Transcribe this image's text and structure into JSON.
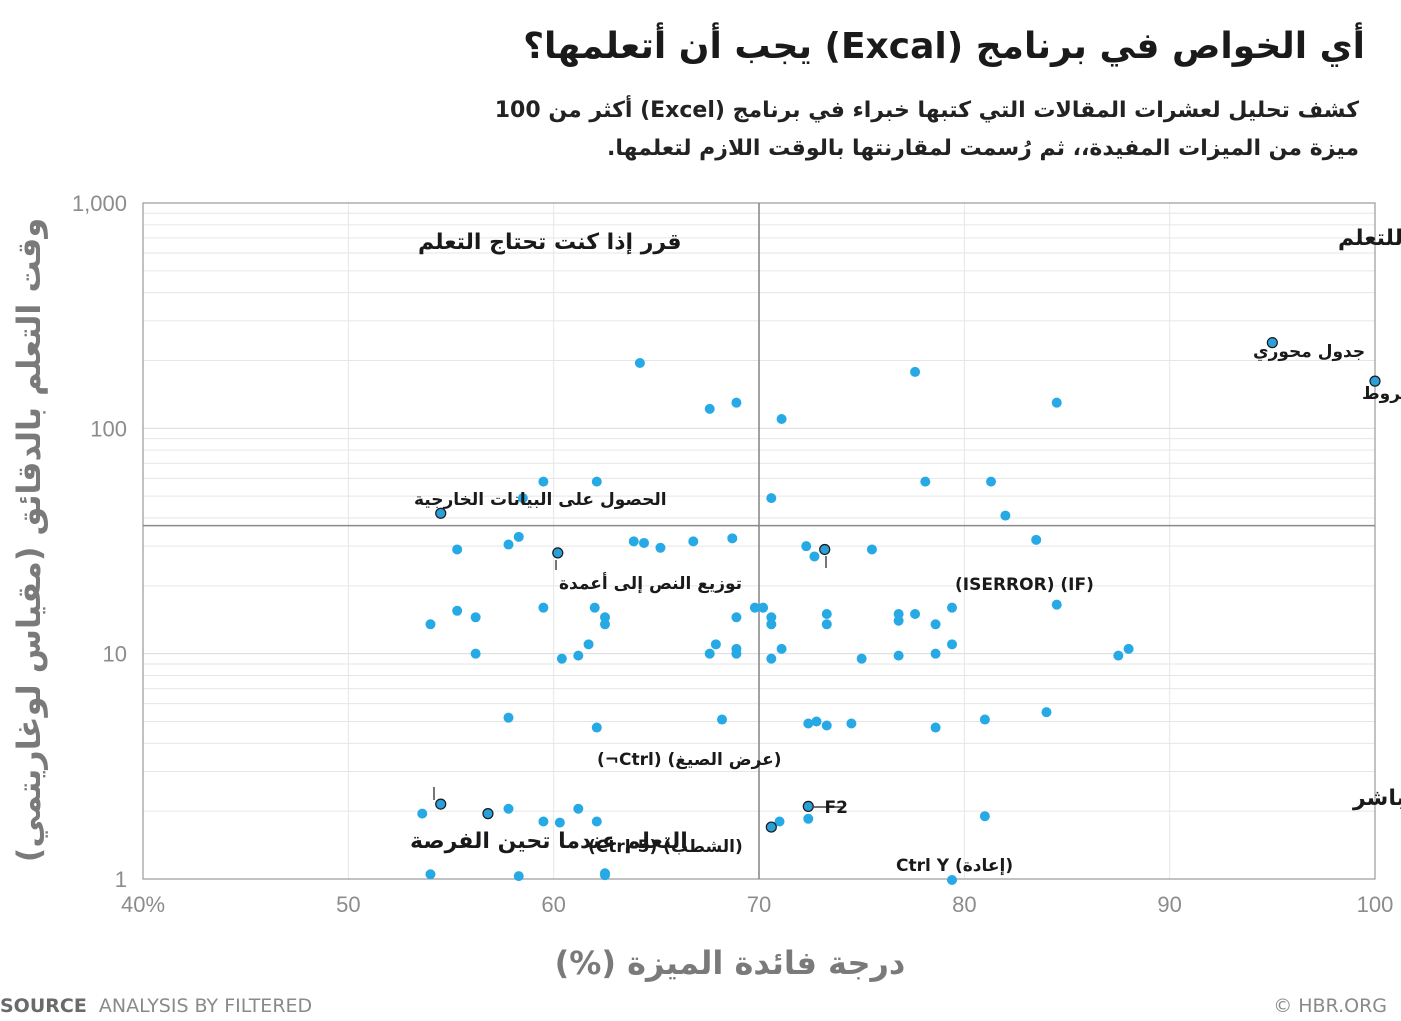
{
  "title": "أي الخواص في برنامج (Excal) يجب أن أتعلمها؟",
  "subtitle": "كشف تحليل لعشرات المقالات التي كتبها خبراء في برنامج (Excel) أكثر من 100 ميزة من الميزات المفيدة،، ثم رُسمت لمقارنتها بالوقت اللازم لتعلمها.",
  "footer": {
    "source_label": "SOURCE",
    "source_text": "ANALYSIS BY FILTERED",
    "credit": "© HBR.ORG"
  },
  "colors": {
    "point": "#27a9e6",
    "highlight": "#2b9fd8",
    "divider": "#8a8a8a",
    "grid": "#e6e6e6"
  },
  "chart_data": {
    "type": "scatter",
    "xlabel": "درجة فائدة الميزة (%)",
    "ylabel": "وقت التعلم بالدقائق (مقياس لوغاريتمي)",
    "xlim": [
      40,
      100
    ],
    "ylim": [
      1,
      1000
    ],
    "y_scale": "log",
    "x_ticks": [
      "40%",
      "50",
      "60",
      "70",
      "80",
      "90",
      "100"
    ],
    "y_ticks": [
      "1",
      "10",
      "100",
      "1,000"
    ],
    "grid": true,
    "dividers": {
      "x": 70,
      "y": 37
    },
    "quadrant_labels": {
      "top_left": "قرر إذا كنت تحتاج التعلم",
      "top_right": "حدد مدة زمنية للتعلم",
      "bottom_left": "التعلم عندما تحين الفرصة",
      "bottom_right": "التعلم بشكل مباشر"
    },
    "labeled_points": [
      {
        "label": "جدول محوري",
        "x": 95,
        "y": 240
      },
      {
        "label": "تنسيق مشروط",
        "x": 100,
        "y": 162
      },
      {
        "label": "الحصول على البيانات الخارجية",
        "x": 54.5,
        "y": 42
      },
      {
        "label": "توزيع النص إلى أعمدة",
        "x": 60.2,
        "y": 28
      },
      {
        "label": "(IF) (ISERROR)",
        "x": 73.2,
        "y": 29
      },
      {
        "label": "(عرض الصيغ)  (Ctrl¬)",
        "x": 54.5,
        "y": 2.15
      },
      {
        "label": "(الشطب)  (Ctrl-5)",
        "x": 56.8,
        "y": 1.95
      },
      {
        "label": "F2",
        "x": 72.4,
        "y": 2.1
      },
      {
        "label": "(إعادة)  Ctrl Y",
        "x": 70.6,
        "y": 1.7
      }
    ],
    "points": [
      [
        64.2,
        195
      ],
      [
        77.6,
        178
      ],
      [
        68.9,
        130
      ],
      [
        67.6,
        122
      ],
      [
        71.1,
        110
      ],
      [
        84.5,
        130
      ],
      [
        59.5,
        58
      ],
      [
        62.1,
        58
      ],
      [
        58.5,
        49
      ],
      [
        70.6,
        49
      ],
      [
        78.1,
        58
      ],
      [
        81.3,
        58
      ],
      [
        82,
        41
      ],
      [
        58.3,
        33
      ],
      [
        57.8,
        30.5
      ],
      [
        55.3,
        29
      ],
      [
        63.9,
        31.5
      ],
      [
        64.4,
        31
      ],
      [
        65.2,
        29.5
      ],
      [
        66.8,
        31.5
      ],
      [
        68.7,
        32.5
      ],
      [
        72.3,
        30
      ],
      [
        72.7,
        27
      ],
      [
        75.5,
        29
      ],
      [
        83.5,
        32
      ],
      [
        59.5,
        16
      ],
      [
        55.3,
        15.5
      ],
      [
        56.2,
        14.5
      ],
      [
        54,
        13.5
      ],
      [
        62,
        16
      ],
      [
        62.5,
        14.5
      ],
      [
        62.5,
        13.5
      ],
      [
        68.9,
        14.5
      ],
      [
        69.8,
        16
      ],
      [
        70.2,
        16
      ],
      [
        70.6,
        14.5
      ],
      [
        70.6,
        13.5
      ],
      [
        73.3,
        15
      ],
      [
        73.3,
        13.5
      ],
      [
        76.8,
        15
      ],
      [
        76.8,
        14
      ],
      [
        77.6,
        15
      ],
      [
        78.6,
        13.5
      ],
      [
        79.4,
        16
      ],
      [
        84.5,
        16.5
      ],
      [
        56.2,
        10
      ],
      [
        60.4,
        9.5
      ],
      [
        61.2,
        9.8
      ],
      [
        61.7,
        11
      ],
      [
        67.6,
        10
      ],
      [
        67.9,
        11
      ],
      [
        68.9,
        10.5
      ],
      [
        68.9,
        10
      ],
      [
        70.6,
        9.5
      ],
      [
        71.1,
        10.5
      ],
      [
        75,
        9.5
      ],
      [
        76.8,
        9.8
      ],
      [
        78.6,
        10
      ],
      [
        79.4,
        11
      ],
      [
        87.5,
        9.8
      ],
      [
        88,
        10.5
      ],
      [
        57.8,
        5.2
      ],
      [
        62.1,
        4.7
      ],
      [
        68.2,
        5.1
      ],
      [
        72.4,
        4.9
      ],
      [
        72.8,
        5
      ],
      [
        73.3,
        4.8
      ],
      [
        74.5,
        4.9
      ],
      [
        78.6,
        4.7
      ],
      [
        81,
        5.1
      ],
      [
        84,
        5.5
      ],
      [
        53.6,
        1.95
      ],
      [
        57.8,
        2.05
      ],
      [
        59.5,
        1.8
      ],
      [
        60.3,
        1.78
      ],
      [
        61.2,
        2.05
      ],
      [
        62.1,
        1.8
      ],
      [
        71,
        1.8
      ],
      [
        72.4,
        1.85
      ],
      [
        81,
        1.9
      ],
      [
        54,
        1.05
      ],
      [
        58.3,
        1.03
      ],
      [
        62.5,
        1.06
      ],
      [
        62.5,
        1.04
      ],
      [
        79.4,
        0.99
      ]
    ]
  }
}
